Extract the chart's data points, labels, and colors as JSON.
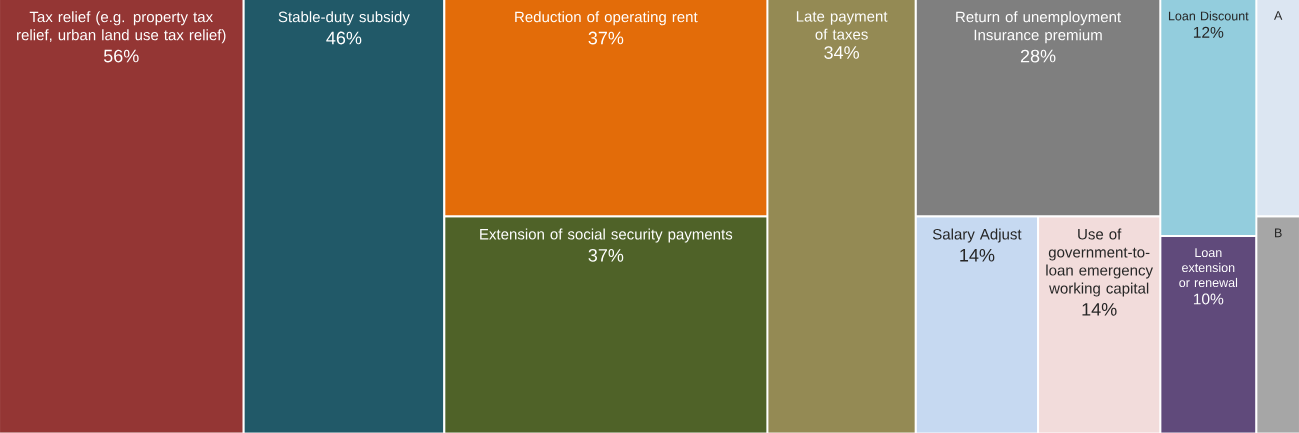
{
  "chart_data": {
    "type": "other",
    "categories": [
      "Tax relief (e.g. property tax relief, urban land use tax relief)",
      "Stable-duty subsidy",
      "Reduction of operating rent",
      "Extension of social security payments",
      "Late payment of taxes",
      "Return of unemployment Insurance premium",
      "Salary Adjust",
      "Use of government-to-loan emergency working capital",
      "Loan Discount",
      "Loan extension or renewal",
      "A",
      "B"
    ],
    "values": [
      56,
      46,
      37,
      37,
      34,
      28,
      14,
      14,
      12,
      10,
      null,
      null
    ],
    "value_labels": [
      "56%",
      "46%",
      "37%",
      "37%",
      "34%",
      "28%",
      "14%",
      "14%",
      "12%",
      "10%",
      null,
      null
    ],
    "colors": [
      "#943634",
      "#215968",
      "#e36c09",
      "#4f6228",
      "#948a54",
      "#7f7f7f",
      "#c6d9f1",
      "#f2dcdb",
      "#93cddd",
      "#604a7b",
      "#dce6f2",
      "#a6a6a6"
    ]
  }
}
